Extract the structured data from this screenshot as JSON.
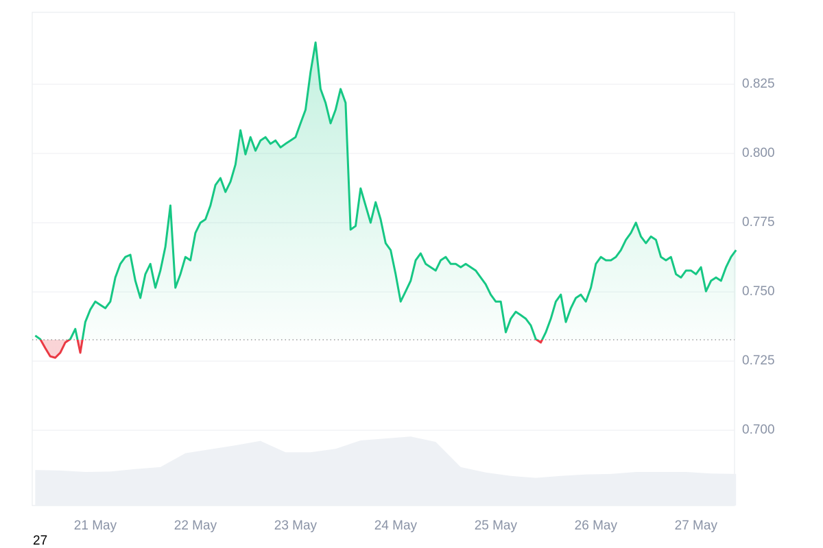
{
  "chart_data": {
    "type": "line",
    "xlim": [
      -0.63,
      6.385
    ],
    "xticks": [
      {
        "value": 0,
        "label": "21 May"
      },
      {
        "value": 1,
        "label": "22 May"
      },
      {
        "value": 2,
        "label": "23 May"
      },
      {
        "value": 3,
        "label": "24 May"
      },
      {
        "value": 4,
        "label": "25 May"
      },
      {
        "value": 5,
        "label": "26 May"
      },
      {
        "value": 6,
        "label": "27 May"
      }
    ],
    "ylim": [
      0.6728,
      0.851
    ],
    "yticks": [
      {
        "value": 0.7,
        "label": "0.700"
      },
      0.725,
      {
        "value": 0.75,
        "label": "0.750"
      },
      0.775,
      {
        "value": 0.8,
        "label": "0.800"
      },
      0.825
    ],
    "grid": true,
    "baseline": 0.7327,
    "negative_color": "#ea3943",
    "x": [
      -0.6,
      -0.55,
      -0.5,
      -0.45,
      -0.4,
      -0.35,
      -0.3,
      -0.25,
      -0.2,
      -0.15,
      -0.1,
      -0.05,
      0,
      0.05,
      0.1,
      0.15,
      0.2,
      0.25,
      0.3,
      0.35,
      0.4,
      0.45,
      0.5,
      0.55,
      0.6,
      0.65,
      0.7,
      0.75,
      0.8,
      0.85,
      0.9,
      0.95,
      1,
      1.05,
      1.1,
      1.15,
      1.2,
      1.25,
      1.3,
      1.35,
      1.4,
      1.45,
      1.5,
      1.55,
      1.6,
      1.65,
      1.7,
      1.75,
      1.8,
      1.85,
      1.9,
      1.95,
      2,
      2.05,
      2.1,
      2.15,
      2.2,
      2.25,
      2.3,
      2.35,
      2.4,
      2.45,
      2.5,
      2.55,
      2.6,
      2.65,
      2.7,
      2.75,
      2.8,
      2.85,
      2.9,
      2.95,
      3,
      3.05,
      3.1,
      3.15,
      3.2,
      3.25,
      3.3,
      3.35,
      3.4,
      3.45,
      3.5,
      3.55,
      3.6,
      3.65,
      3.7,
      3.75,
      3.8,
      3.85,
      3.9,
      3.95,
      4,
      4.05,
      4.1,
      4.15,
      4.2,
      4.25,
      4.3,
      4.35,
      4.4,
      4.45,
      4.5,
      4.55,
      4.6,
      4.65,
      4.7,
      4.75,
      4.8,
      4.85,
      4.9,
      4.95,
      5,
      5.05,
      5.1,
      5.15,
      5.2,
      5.25,
      5.3,
      5.35,
      5.4,
      5.45,
      5.5,
      5.55,
      5.6,
      5.65,
      5.7,
      5.75,
      5.8,
      5.85,
      5.9,
      5.95,
      6,
      6.05,
      6.1,
      6.15,
      6.2,
      6.25,
      6.3,
      6.35,
      6.4
    ],
    "series": [
      {
        "color": "#16c784",
        "values": [
          0.7342,
          0.7329,
          0.7297,
          0.7267,
          0.7262,
          0.728,
          0.7317,
          0.7329,
          0.7366,
          0.728,
          0.7391,
          0.7436,
          0.7465,
          0.7453,
          0.7441,
          0.7465,
          0.7552,
          0.7601,
          0.7626,
          0.7634,
          0.754,
          0.7478,
          0.7564,
          0.7601,
          0.7515,
          0.7577,
          0.7663,
          0.7812,
          0.7515,
          0.7564,
          0.7626,
          0.7614,
          0.7713,
          0.775,
          0.7762,
          0.7812,
          0.7886,
          0.7911,
          0.7861,
          0.7898,
          0.796,
          0.8084,
          0.7997,
          0.8059,
          0.801,
          0.8047,
          0.8059,
          0.8035,
          0.8047,
          0.8022,
          0.8035,
          0.8047,
          0.8059,
          0.8109,
          0.8158,
          0.8294,
          0.8401,
          0.8233,
          0.8183,
          0.8109,
          0.8158,
          0.8233,
          0.8183,
          0.7725,
          0.7738,
          0.7874,
          0.7812,
          0.775,
          0.7824,
          0.7762,
          0.7676,
          0.7651,
          0.7564,
          0.7465,
          0.7502,
          0.754,
          0.7614,
          0.7639,
          0.7601,
          0.7589,
          0.7577,
          0.7614,
          0.7626,
          0.7601,
          0.7601,
          0.7589,
          0.7601,
          0.7589,
          0.7577,
          0.7552,
          0.7527,
          0.749,
          0.7465,
          0.7465,
          0.7354,
          0.7403,
          0.7428,
          0.7416,
          0.7403,
          0.7379,
          0.7329,
          0.7317,
          0.7354,
          0.7403,
          0.7465,
          0.749,
          0.7391,
          0.7441,
          0.7478,
          0.749,
          0.7465,
          0.7515,
          0.7601,
          0.7626,
          0.7614,
          0.7614,
          0.7626,
          0.7651,
          0.7688,
          0.7713,
          0.775,
          0.77,
          0.7676,
          0.77,
          0.7688,
          0.7626,
          0.7614,
          0.7626,
          0.7564,
          0.7552,
          0.7577,
          0.7577,
          0.7564,
          0.7589,
          0.7502,
          0.754,
          0.7552,
          0.754,
          0.7589,
          0.7626,
          0.7651
        ]
      }
    ],
    "y2lim": [
      0,
      100
    ],
    "volume": {
      "color": "#eef1f5",
      "x": [
        -0.6,
        -0.35,
        -0.1,
        0.15,
        0.4,
        0.65,
        0.9,
        1.15,
        1.4,
        1.65,
        1.9,
        2.15,
        2.4,
        2.65,
        2.9,
        3.15,
        3.4,
        3.65,
        3.9,
        4.15,
        4.4,
        4.65,
        4.9,
        5.15,
        5.4,
        5.65,
        5.9,
        6.15,
        6.4
      ],
      "values": [
        7.2,
        7.1,
        6.8,
        6.9,
        7.4,
        7.8,
        10.6,
        11.4,
        12.2,
        13.1,
        10.8,
        10.8,
        11.5,
        13.2,
        13.6,
        14.0,
        12.9,
        7.8,
        6.7,
        6.0,
        5.6,
        6.0,
        6.3,
        6.4,
        6.8,
        6.8,
        6.8,
        6.5,
        6.4
      ]
    }
  },
  "corner_label": "27"
}
